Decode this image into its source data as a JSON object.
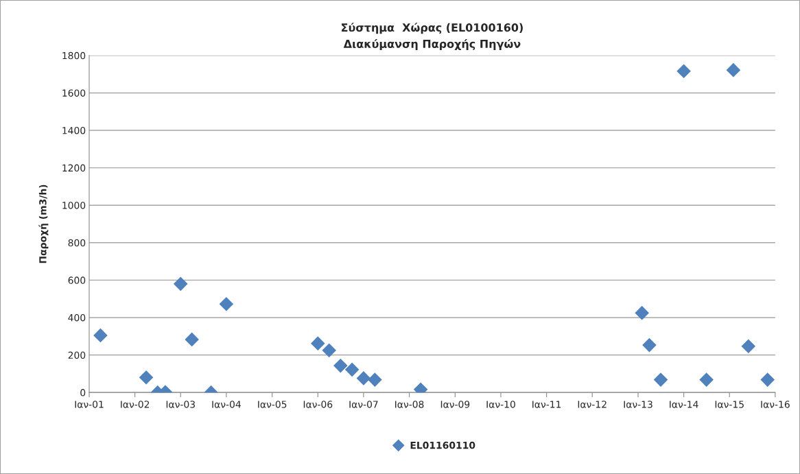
{
  "chart_data": {
    "type": "scatter",
    "title": "Σύστημα  Χώρας (EL0100160)\nΔιακύμανση Παροχής Πηγών",
    "ylabel": "Παροχή (m3/h)",
    "x": [
      "2001-04",
      "2002-04",
      "2002-07",
      "2002-09",
      "2003-01",
      "2003-04",
      "2003-09",
      "2004-01",
      "2006-01",
      "2006-04",
      "2006-07",
      "2006-10",
      "2007-01",
      "2007-04",
      "2008-04",
      "2013-02",
      "2013-04",
      "2013-07",
      "2014-01",
      "2014-07",
      "2015-02",
      "2015-06",
      "2015-11"
    ],
    "series": [
      {
        "name": "EL01160110",
        "color": "#4f81bd",
        "values": [
          305,
          80,
          0,
          2,
          580,
          283,
          0,
          472,
          262,
          225,
          143,
          122,
          76,
          68,
          16,
          425,
          253,
          68,
          1716,
          68,
          1722,
          247,
          68
        ]
      }
    ],
    "xlim": [
      "2001-01",
      "2016-01"
    ],
    "xticks": [
      {
        "value": "2001-01",
        "label": "Ιαν-01"
      },
      {
        "value": "2002-01",
        "label": "Ιαν-02"
      },
      {
        "value": "2003-01",
        "label": "Ιαν-03"
      },
      {
        "value": "2004-01",
        "label": "Ιαν-04"
      },
      {
        "value": "2005-01",
        "label": "Ιαν-05"
      },
      {
        "value": "2006-01",
        "label": "Ιαν-06"
      },
      {
        "value": "2007-01",
        "label": "Ιαν-07"
      },
      {
        "value": "2008-01",
        "label": "Ιαν-08"
      },
      {
        "value": "2009-01",
        "label": "Ιαν-09"
      },
      {
        "value": "2010-01",
        "label": "Ιαν-10"
      },
      {
        "value": "2011-01",
        "label": "Ιαν-11"
      },
      {
        "value": "2012-01",
        "label": "Ιαν-12"
      },
      {
        "value": "2013-01",
        "label": "Ιαν-13"
      },
      {
        "value": "2014-01",
        "label": "Ιαν-14"
      },
      {
        "value": "2015-01",
        "label": "Ιαν-15"
      },
      {
        "value": "2016-01",
        "label": "Ιαν-16"
      }
    ],
    "ylim": [
      0,
      1800
    ],
    "yticks": [
      0,
      200,
      400,
      600,
      800,
      1000,
      1200,
      1400,
      1600,
      1800
    ],
    "grid": "y",
    "legend": "bottom",
    "marker": "diamond"
  }
}
